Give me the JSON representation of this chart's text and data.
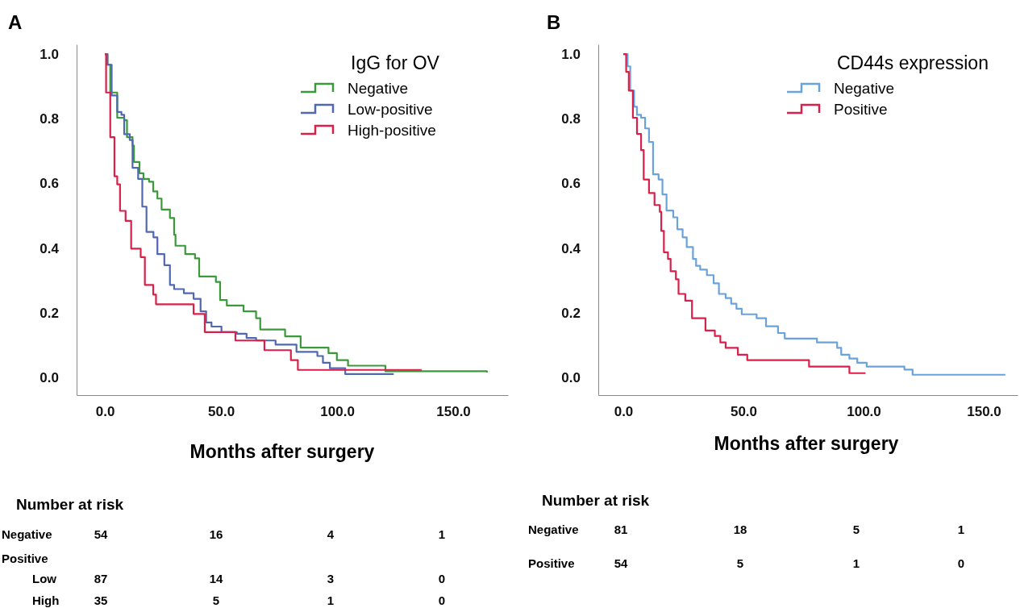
{
  "chart_data": [
    {
      "type": "step",
      "title": "A",
      "xlabel": "Months after surgery",
      "legend_title": "IgG for OV",
      "legend": "top right",
      "xlim": [
        -12.2,
        173.6
      ],
      "ylim": [
        -0.055,
        1.03
      ],
      "xticks": [
        {
          "value": 0,
          "label": "0.0"
        },
        {
          "value": 50,
          "label": "50.0"
        },
        {
          "value": 100,
          "label": "100.0"
        },
        {
          "value": 150,
          "label": "150.0"
        }
      ],
      "yticks": [
        {
          "value": 0,
          "label": "0.0"
        },
        {
          "value": 0.2,
          "label": "0.2"
        },
        {
          "value": 0.4,
          "label": "0.4"
        },
        {
          "value": 0.6,
          "label": "0.6"
        },
        {
          "value": 0.8,
          "label": "0.8"
        },
        {
          "value": 1,
          "label": "1.0"
        }
      ],
      "series": [
        {
          "name": "Negative",
          "color": "#3a9a3a",
          "x": [
            0,
            1.1,
            2.3,
            5.3,
            8.3,
            9.5,
            11.9,
            12.5,
            14.9,
            16.6,
            19,
            20.8,
            22.6,
            24.4,
            28,
            29.8,
            30.4,
            34.6,
            38.8,
            40.6,
            47.8,
            49.6,
            52.5,
            59.7,
            65.1,
            66.9,
            77.6,
            84.3,
            96.3,
            99.9,
            104.7,
            120.8,
            164.5
          ],
          "values": [
            1.0,
            0.967,
            0.881,
            0.803,
            0.795,
            0.743,
            0.717,
            0.666,
            0.631,
            0.614,
            0.605,
            0.575,
            0.553,
            0.519,
            0.493,
            0.441,
            0.407,
            0.381,
            0.368,
            0.312,
            0.295,
            0.239,
            0.222,
            0.204,
            0.183,
            0.148,
            0.127,
            0.092,
            0.075,
            0.053,
            0.036,
            0.019,
            0.015
          ]
        },
        {
          "name": "Low-positive",
          "color": "#5068b0",
          "x": [
            0,
            1.1,
            2.9,
            5.3,
            7.1,
            8.3,
            10.7,
            11.9,
            14.3,
            16.1,
            17.9,
            20.9,
            22.6,
            25.6,
            28,
            29.8,
            34,
            38.2,
            41.2,
            43.6,
            45.9,
            50.2,
            56.8,
            61,
            65.1,
            73.5,
            82.5,
            91.5,
            93.9,
            96.9,
            103.5,
            124.4
          ],
          "values": [
            1.0,
            0.967,
            0.872,
            0.821,
            0.812,
            0.752,
            0.734,
            0.648,
            0.614,
            0.528,
            0.45,
            0.433,
            0.381,
            0.347,
            0.286,
            0.273,
            0.26,
            0.243,
            0.204,
            0.17,
            0.157,
            0.14,
            0.135,
            0.122,
            0.114,
            0.101,
            0.079,
            0.066,
            0.045,
            0.028,
            0.01,
            0.01
          ]
        },
        {
          "name": "High-positive",
          "color": "#d8204a",
          "x": [
            0,
            0.5,
            2.3,
            4.1,
            5.3,
            6.5,
            8.9,
            11.3,
            15.4,
            17.2,
            20.8,
            22,
            38.2,
            43,
            56.2,
            68.7,
            80.1,
            83.1,
            136.4
          ],
          "values": [
            1.0,
            0.881,
            0.743,
            0.622,
            0.597,
            0.515,
            0.484,
            0.398,
            0.372,
            0.286,
            0.256,
            0.226,
            0.196,
            0.14,
            0.114,
            0.084,
            0.053,
            0.023,
            0.023
          ]
        }
      ],
      "annotations": [
        "Number at risk",
        "Negative",
        "54",
        "16",
        "4",
        "1",
        "Positive",
        "Low",
        "87",
        "14",
        "3",
        "0",
        "High",
        "35",
        "5",
        "1",
        "0"
      ]
    },
    {
      "type": "step",
      "title": "B",
      "xlabel": "Months after surgery",
      "legend_title": "CD44s expression",
      "legend": "top right",
      "xlim": [
        -10.4,
        164.1
      ],
      "ylim": [
        -0.055,
        1.03
      ],
      "xticks": [
        {
          "value": 0,
          "label": "0.0"
        },
        {
          "value": 50,
          "label": "50.0"
        },
        {
          "value": 100,
          "label": "100.0"
        },
        {
          "value": 150,
          "label": "150.0"
        }
      ],
      "yticks": [
        {
          "value": 0,
          "label": "0.0"
        },
        {
          "value": 0.2,
          "label": "0.2"
        },
        {
          "value": 0.4,
          "label": "0.4"
        },
        {
          "value": 0.6,
          "label": "0.6"
        },
        {
          "value": 0.8,
          "label": "0.8"
        },
        {
          "value": 1,
          "label": "1.0"
        }
      ],
      "series": [
        {
          "name": "Negative",
          "color": "#6aa2dc",
          "x": [
            0,
            1.8,
            2.9,
            4.5,
            5.7,
            7.4,
            9.1,
            10.7,
            12.4,
            14.7,
            16.3,
            18,
            20.8,
            22.5,
            24.7,
            26.4,
            29,
            30.3,
            32,
            34.8,
            37.6,
            39.8,
            42.6,
            44.9,
            47.1,
            49.3,
            55.5,
            59.4,
            64.4,
            67.2,
            80.6,
            89,
            90.7,
            94.1,
            97.4,
            101.3,
            117,
            120.4,
            159
          ],
          "values": [
            1.0,
            0.962,
            0.887,
            0.837,
            0.812,
            0.803,
            0.77,
            0.728,
            0.628,
            0.612,
            0.566,
            0.516,
            0.495,
            0.458,
            0.433,
            0.403,
            0.366,
            0.345,
            0.333,
            0.316,
            0.291,
            0.258,
            0.245,
            0.228,
            0.212,
            0.195,
            0.183,
            0.158,
            0.137,
            0.12,
            0.108,
            0.091,
            0.07,
            0.058,
            0.045,
            0.033,
            0.024,
            0.008,
            0.008
          ]
        },
        {
          "name": "Positive",
          "color": "#d8204a",
          "x": [
            0,
            1.2,
            2.3,
            4,
            5.7,
            7.4,
            8.5,
            10.7,
            13,
            15.2,
            15.8,
            16.9,
            18.6,
            19.7,
            21.9,
            23,
            25.8,
            28.6,
            34.2,
            38.1,
            40.4,
            42.6,
            47.7,
            51.6,
            77.3,
            94.1,
            100.8
          ],
          "values": [
            1.0,
            0.945,
            0.887,
            0.803,
            0.753,
            0.703,
            0.612,
            0.57,
            0.533,
            0.512,
            0.453,
            0.387,
            0.366,
            0.328,
            0.303,
            0.258,
            0.237,
            0.183,
            0.145,
            0.128,
            0.108,
            0.091,
            0.07,
            0.053,
            0.033,
            0.013,
            0.013
          ]
        }
      ],
      "annotations": [
        "Number at risk",
        "Negative",
        "81",
        "18",
        "5",
        "1",
        "Positive",
        "54",
        "5",
        "1",
        "0"
      ]
    }
  ]
}
